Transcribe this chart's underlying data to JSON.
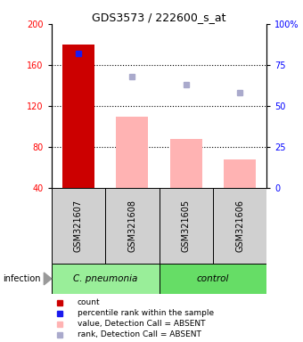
{
  "title": "GDS3573 / 222600_s_at",
  "samples": [
    "GSM321607",
    "GSM321608",
    "GSM321605",
    "GSM321606"
  ],
  "bar_values": [
    180,
    110,
    88,
    68
  ],
  "bar_colors": [
    "#cc0000",
    "#ffb3b3",
    "#ffb3b3",
    "#ffb3b3"
  ],
  "percentile_ranks": [
    82,
    68,
    63,
    58
  ],
  "rank_colors": [
    "#1a1aee",
    "#aaaacc",
    "#aaaacc",
    "#aaaacc"
  ],
  "ylim_left": [
    40,
    200
  ],
  "ylim_right": [
    0,
    100
  ],
  "yticks_left": [
    40,
    80,
    120,
    160,
    200
  ],
  "yticks_right": [
    0,
    25,
    50,
    75,
    100
  ],
  "groups": [
    {
      "label": "C. pneumonia",
      "indices": [
        0,
        1
      ],
      "color": "#99ee99"
    },
    {
      "label": "control",
      "indices": [
        2,
        3
      ],
      "color": "#66dd66"
    }
  ],
  "group_label": "infection",
  "background_color": "#ffffff",
  "legend_items": [
    {
      "label": "count",
      "color": "#cc0000"
    },
    {
      "label": "percentile rank within the sample",
      "color": "#1a1aee"
    },
    {
      "label": "value, Detection Call = ABSENT",
      "color": "#ffb3b3"
    },
    {
      "label": "rank, Detection Call = ABSENT",
      "color": "#aaaacc"
    }
  ]
}
